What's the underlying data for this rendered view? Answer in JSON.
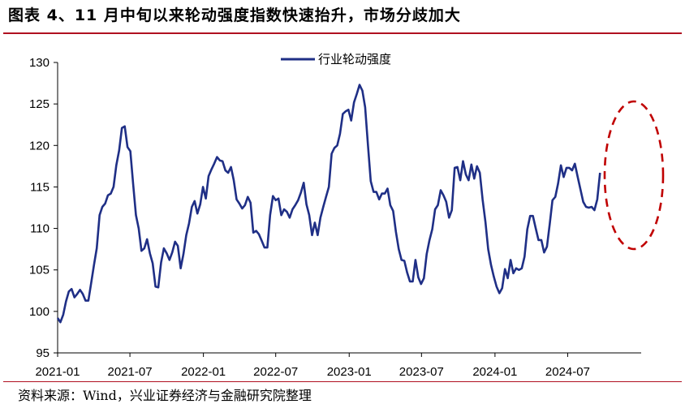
{
  "title": "图表 4、11 月中旬以来轮动强度指数快速抬升，市场分歧加大",
  "source": "资料来源：Wind，兴业证券经济与金融研究院整理",
  "colors": {
    "series": "#1f2f86",
    "annotation": "#c00000",
    "axis": "#000000"
  },
  "chart_data": {
    "type": "line",
    "title": "",
    "xlabel": "",
    "ylabel": "",
    "ylim": [
      95,
      130
    ],
    "y_ticks": [
      95,
      100,
      105,
      110,
      115,
      120,
      125,
      130
    ],
    "x_ticks": [
      "2021-01",
      "2021-07",
      "2022-01",
      "2022-07",
      "2023-01",
      "2023-07",
      "2024-01",
      "2024-07"
    ],
    "x_range": [
      "2021-01",
      "2024-12"
    ],
    "legend_position": "top-center",
    "grid": false,
    "series": [
      {
        "name": "行业轮动强度",
        "color": "#1f2f86",
        "points": [
          [
            "2021-01",
            99.2
          ],
          [
            "2021-01-08",
            98.7
          ],
          [
            "2021-01-15",
            99.6
          ],
          [
            "2021-01-22",
            101.2
          ],
          [
            "2021-01-29",
            102.4
          ],
          [
            "2021-02-05",
            102.7
          ],
          [
            "2021-02-12",
            101.7
          ],
          [
            "2021-02-19",
            102.1
          ],
          [
            "2021-02-26",
            102.6
          ],
          [
            "2021-03-05",
            102.1
          ],
          [
            "2021-03-12",
            101.3
          ],
          [
            "2021-03-19",
            101.3
          ],
          [
            "2021-03-26",
            103.4
          ],
          [
            "2021-04-02",
            105.6
          ],
          [
            "2021-04-09",
            107.6
          ],
          [
            "2021-04-16",
            111.6
          ],
          [
            "2021-04-23",
            112.6
          ],
          [
            "2021-04-30",
            113.0
          ],
          [
            "2021-05-07",
            114.0
          ],
          [
            "2021-05-14",
            114.2
          ],
          [
            "2021-05-21",
            115.0
          ],
          [
            "2021-05-28",
            117.6
          ],
          [
            "2021-06-04",
            119.4
          ],
          [
            "2021-06-11",
            122.1
          ],
          [
            "2021-06-18",
            122.3
          ],
          [
            "2021-06-25",
            119.8
          ],
          [
            "2021-07-02",
            119.3
          ],
          [
            "2021-07-09",
            115.4
          ],
          [
            "2021-07-16",
            111.6
          ],
          [
            "2021-07-23",
            110.0
          ],
          [
            "2021-07-30",
            107.3
          ],
          [
            "2021-08-06",
            107.6
          ],
          [
            "2021-08-13",
            108.7
          ],
          [
            "2021-08-20",
            107.0
          ],
          [
            "2021-08-27",
            105.8
          ],
          [
            "2021-09-03",
            103.0
          ],
          [
            "2021-09-10",
            102.9
          ],
          [
            "2021-09-17",
            105.9
          ],
          [
            "2021-09-24",
            107.6
          ],
          [
            "2021-10-01",
            107.0
          ],
          [
            "2021-10-08",
            106.2
          ],
          [
            "2021-10-15",
            107.1
          ],
          [
            "2021-10-22",
            108.4
          ],
          [
            "2021-10-29",
            107.9
          ],
          [
            "2021-11-05",
            105.2
          ],
          [
            "2021-11-12",
            106.9
          ],
          [
            "2021-11-19",
            109.2
          ],
          [
            "2021-11-26",
            110.6
          ],
          [
            "2021-12-03",
            112.6
          ],
          [
            "2021-12-10",
            113.3
          ],
          [
            "2021-12-17",
            111.8
          ],
          [
            "2021-12-24",
            112.9
          ],
          [
            "2021-12-31",
            115.0
          ],
          [
            "2022-01-07",
            113.6
          ],
          [
            "2022-01-14",
            116.3
          ],
          [
            "2022-01-21",
            117.1
          ],
          [
            "2022-01-28",
            117.8
          ],
          [
            "2022-02-04",
            118.6
          ],
          [
            "2022-02-11",
            118.2
          ],
          [
            "2022-02-18",
            118.1
          ],
          [
            "2022-02-25",
            117.0
          ],
          [
            "2022-03-04",
            116.7
          ],
          [
            "2022-03-11",
            117.4
          ],
          [
            "2022-03-18",
            115.8
          ],
          [
            "2022-03-25",
            113.5
          ],
          [
            "2022-04-01",
            113.0
          ],
          [
            "2022-04-08",
            112.4
          ],
          [
            "2022-04-15",
            112.8
          ],
          [
            "2022-04-22",
            113.8
          ],
          [
            "2022-04-29",
            113.1
          ],
          [
            "2022-05-06",
            109.5
          ],
          [
            "2022-05-13",
            109.7
          ],
          [
            "2022-05-20",
            109.3
          ],
          [
            "2022-05-27",
            108.5
          ],
          [
            "2022-06-03",
            107.7
          ],
          [
            "2022-06-10",
            107.7
          ],
          [
            "2022-06-17",
            111.6
          ],
          [
            "2022-06-24",
            113.9
          ],
          [
            "2022-07-01",
            113.4
          ],
          [
            "2022-07-08",
            113.6
          ],
          [
            "2022-07-15",
            111.6
          ],
          [
            "2022-07-22",
            112.3
          ],
          [
            "2022-07-29",
            112.0
          ],
          [
            "2022-08-05",
            111.3
          ],
          [
            "2022-08-12",
            112.3
          ],
          [
            "2022-08-19",
            112.8
          ],
          [
            "2022-08-26",
            113.4
          ],
          [
            "2022-09-02",
            114.3
          ],
          [
            "2022-09-09",
            115.5
          ],
          [
            "2022-09-16",
            112.9
          ],
          [
            "2022-09-23",
            111.6
          ],
          [
            "2022-09-30",
            109.2
          ],
          [
            "2022-10-07",
            110.7
          ],
          [
            "2022-10-14",
            109.2
          ],
          [
            "2022-10-21",
            111.3
          ],
          [
            "2022-10-28",
            112.6
          ],
          [
            "2022-11-04",
            113.8
          ],
          [
            "2022-11-11",
            115.0
          ],
          [
            "2022-11-18",
            119.0
          ],
          [
            "2022-11-25",
            119.7
          ],
          [
            "2022-12-02",
            120.0
          ],
          [
            "2022-12-09",
            121.4
          ],
          [
            "2022-12-16",
            123.8
          ],
          [
            "2022-12-23",
            124.1
          ],
          [
            "2022-12-30",
            124.3
          ],
          [
            "2023-01-06",
            123.0
          ],
          [
            "2023-01-13",
            125.2
          ],
          [
            "2023-01-20",
            126.2
          ],
          [
            "2023-01-27",
            127.3
          ],
          [
            "2023-02-03",
            126.6
          ],
          [
            "2023-02-10",
            124.6
          ],
          [
            "2023-02-17",
            120.0
          ],
          [
            "2023-02-24",
            115.7
          ],
          [
            "2023-03-03",
            114.4
          ],
          [
            "2023-03-10",
            114.4
          ],
          [
            "2023-03-17",
            113.5
          ],
          [
            "2023-03-24",
            114.2
          ],
          [
            "2023-03-31",
            114.2
          ],
          [
            "2023-04-07",
            114.8
          ],
          [
            "2023-04-14",
            112.8
          ],
          [
            "2023-04-21",
            112.1
          ],
          [
            "2023-04-28",
            109.6
          ],
          [
            "2023-05-05",
            107.5
          ],
          [
            "2023-05-12",
            106.2
          ],
          [
            "2023-05-19",
            106.1
          ],
          [
            "2023-05-26",
            104.7
          ],
          [
            "2023-06-02",
            103.6
          ],
          [
            "2023-06-09",
            103.6
          ],
          [
            "2023-06-16",
            106.2
          ],
          [
            "2023-06-23",
            104.1
          ],
          [
            "2023-06-30",
            103.3
          ],
          [
            "2023-07-07",
            104.0
          ],
          [
            "2023-07-14",
            106.9
          ],
          [
            "2023-07-21",
            108.6
          ],
          [
            "2023-07-28",
            109.9
          ],
          [
            "2023-08-04",
            112.3
          ],
          [
            "2023-08-11",
            112.8
          ],
          [
            "2023-08-18",
            114.6
          ],
          [
            "2023-08-25",
            114.0
          ],
          [
            "2023-09-01",
            113.2
          ],
          [
            "2023-09-08",
            111.3
          ],
          [
            "2023-09-15",
            112.2
          ],
          [
            "2023-09-22",
            117.3
          ],
          [
            "2023-09-29",
            117.4
          ],
          [
            "2023-10-06",
            115.8
          ],
          [
            "2023-10-13",
            118.1
          ],
          [
            "2023-10-20",
            116.5
          ],
          [
            "2023-10-27",
            115.8
          ],
          [
            "2023-11-03",
            117.7
          ],
          [
            "2023-11-10",
            116.0
          ],
          [
            "2023-11-17",
            117.5
          ],
          [
            "2023-11-24",
            116.7
          ],
          [
            "2023-12-01",
            113.5
          ],
          [
            "2023-12-08",
            110.8
          ],
          [
            "2023-12-15",
            107.5
          ],
          [
            "2023-12-22",
            105.6
          ],
          [
            "2023-12-29",
            104.2
          ],
          [
            "2024-01-05",
            103.0
          ],
          [
            "2024-01-12",
            102.2
          ],
          [
            "2024-01-19",
            102.8
          ],
          [
            "2024-01-26",
            105.1
          ],
          [
            "2024-02-02",
            104.0
          ],
          [
            "2024-02-09",
            106.2
          ],
          [
            "2024-02-16",
            104.6
          ],
          [
            "2024-02-23",
            105.2
          ],
          [
            "2024-03-01",
            105.0
          ],
          [
            "2024-03-08",
            105.2
          ],
          [
            "2024-03-15",
            106.6
          ],
          [
            "2024-03-22",
            109.9
          ],
          [
            "2024-03-29",
            111.5
          ],
          [
            "2024-04-05",
            111.5
          ],
          [
            "2024-04-12",
            110.0
          ],
          [
            "2024-04-19",
            108.6
          ],
          [
            "2024-04-26",
            108.6
          ],
          [
            "2024-05-03",
            107.1
          ],
          [
            "2024-05-10",
            107.8
          ],
          [
            "2024-05-17",
            110.5
          ],
          [
            "2024-05-24",
            113.4
          ],
          [
            "2024-05-31",
            113.8
          ],
          [
            "2024-06-07",
            115.4
          ],
          [
            "2024-06-14",
            117.6
          ],
          [
            "2024-06-21",
            116.2
          ],
          [
            "2024-06-28",
            117.3
          ],
          [
            "2024-07-05",
            117.3
          ],
          [
            "2024-07-12",
            117.0
          ],
          [
            "2024-07-19",
            117.8
          ],
          [
            "2024-07-26",
            116.2
          ],
          [
            "2024-08-02",
            114.7
          ],
          [
            "2024-08-09",
            113.2
          ],
          [
            "2024-08-16",
            112.6
          ],
          [
            "2024-08-23",
            112.5
          ],
          [
            "2024-08-30",
            112.6
          ],
          [
            "2024-09-06",
            112.2
          ],
          [
            "2024-09-13",
            113.5
          ],
          [
            "2024-09-20",
            116.7
          ]
        ]
      }
    ]
  }
}
